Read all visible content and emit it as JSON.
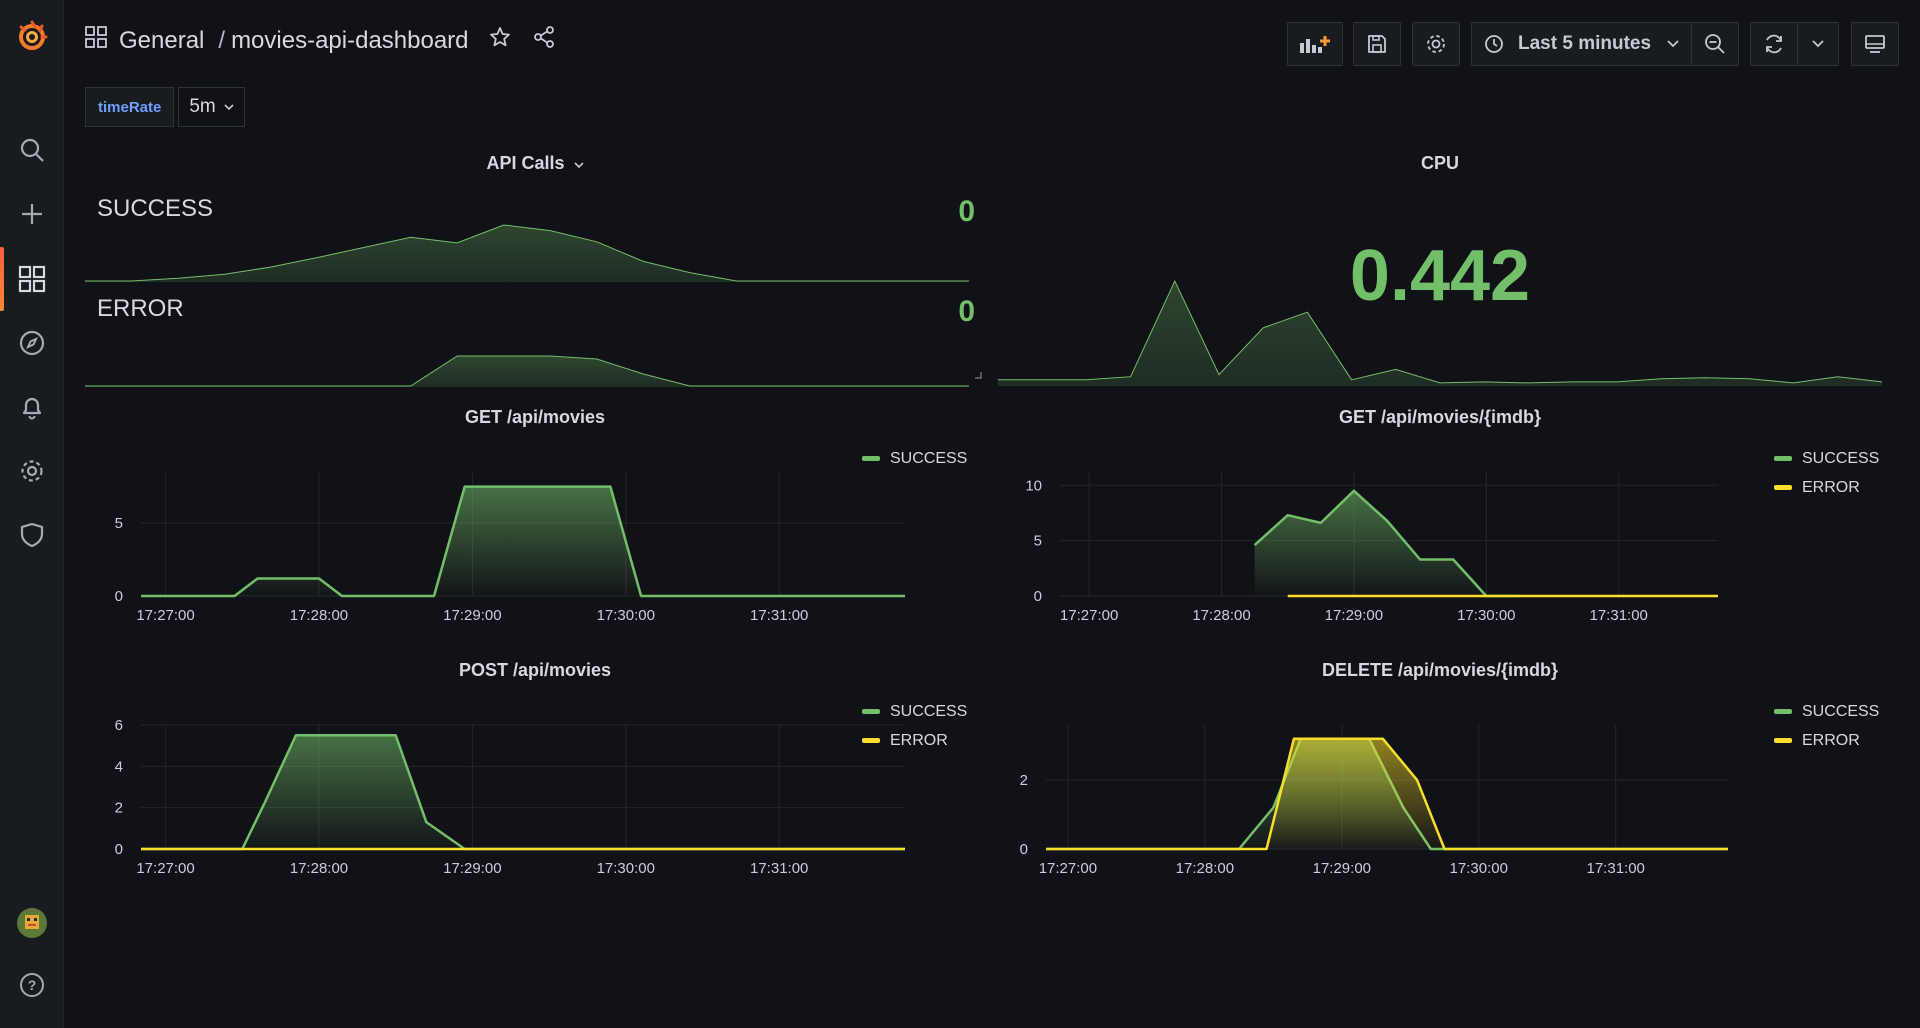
{
  "header": {
    "folder": "General",
    "separator": "/",
    "dashboard_title": "movies-api-dashboard",
    "time_range": "Last 5 minutes"
  },
  "variables": {
    "name": "timeRate",
    "value": "5m"
  },
  "colors": {
    "success": "#73bf69",
    "error": "#fade2a",
    "background": "#111217",
    "accent": "#f55f3e"
  },
  "panels": {
    "api_calls": {
      "title": "API Calls",
      "success_label": "SUCCESS",
      "success_value": "0",
      "error_label": "ERROR",
      "error_value": "0"
    },
    "cpu": {
      "title": "CPU",
      "value": "0.442"
    },
    "get_movies": {
      "title": "GET /api/movies",
      "legend": [
        "SUCCESS"
      ]
    },
    "get_movie_imdb": {
      "title": "GET /api/movies/{imdb}",
      "legend": [
        "SUCCESS",
        "ERROR"
      ]
    },
    "post_movies": {
      "title": "POST /api/movies",
      "legend": [
        "SUCCESS",
        "ERROR"
      ]
    },
    "delete_movie": {
      "title": "DELETE /api/movies/{imdb}",
      "legend": [
        "SUCCESS",
        "ERROR"
      ]
    }
  },
  "chart_data": [
    {
      "id": "get_movies",
      "type": "area",
      "title": "GET /api/movies",
      "x_ticks": [
        "17:27:00",
        "17:28:00",
        "17:29:00",
        "17:30:00",
        "17:31:00"
      ],
      "y_ticks": [
        0,
        5
      ],
      "ylim": [
        0,
        8.5
      ],
      "xlim": [
        -0.16,
        4.82
      ],
      "series": [
        {
          "name": "SUCCESS",
          "color": "#73bf69",
          "x": [
            -0.16,
            0.45,
            0.6,
            1.0,
            1.15,
            1.3,
            1.75,
            1.95,
            2.9,
            3.1,
            4.82
          ],
          "y": [
            0,
            0,
            1.2,
            1.2,
            0,
            0,
            0,
            7.5,
            7.5,
            0,
            0
          ]
        }
      ]
    },
    {
      "id": "get_movie_imdb",
      "type": "area",
      "title": "GET /api/movies/{imdb}",
      "x_ticks": [
        "17:27:00",
        "17:28:00",
        "17:29:00",
        "17:30:00",
        "17:31:00"
      ],
      "y_ticks": [
        0,
        5,
        10
      ],
      "ylim": [
        0,
        11.2
      ],
      "xlim": [
        -0.22,
        4.75
      ],
      "series": [
        {
          "name": "SUCCESS",
          "color": "#73bf69",
          "x": [
            1.25,
            1.5,
            1.75,
            2.0,
            2.25,
            2.5,
            2.75,
            3.0,
            3.25
          ],
          "y": [
            4.6,
            7.3,
            6.6,
            9.5,
            6.8,
            3.3,
            3.3,
            0,
            0
          ]
        },
        {
          "name": "ERROR",
          "color": "#fade2a",
          "x": [
            1.5,
            4.75
          ],
          "y": [
            0,
            0
          ]
        }
      ]
    },
    {
      "id": "post_movies",
      "type": "area",
      "title": "POST /api/movies",
      "x_ticks": [
        "17:27:00",
        "17:28:00",
        "17:29:00",
        "17:30:00",
        "17:31:00"
      ],
      "y_ticks": [
        0,
        2,
        4,
        6
      ],
      "ylim": [
        0,
        6.0
      ],
      "xlim": [
        -0.16,
        4.82
      ],
      "series": [
        {
          "name": "SUCCESS",
          "color": "#73bf69",
          "x": [
            -0.16,
            0.5,
            0.65,
            0.85,
            1.5,
            1.7,
            1.95,
            2.15,
            4.82
          ],
          "y": [
            0,
            0,
            2.3,
            5.5,
            5.5,
            1.3,
            0,
            0,
            0
          ]
        },
        {
          "name": "ERROR",
          "color": "#fade2a",
          "x": [
            -0.16,
            4.82
          ],
          "y": [
            0,
            0
          ]
        }
      ]
    },
    {
      "id": "delete_movie",
      "type": "area",
      "title": "DELETE /api/movies/{imdb}",
      "x_ticks": [
        "17:27:00",
        "17:28:00",
        "17:29:00",
        "17:30:00",
        "17:31:00"
      ],
      "y_ticks": [
        0,
        2
      ],
      "ylim": [
        0,
        3.6
      ],
      "xlim": [
        -0.16,
        4.82
      ],
      "series": [
        {
          "name": "SUCCESS",
          "color": "#73bf69",
          "x": [
            -0.16,
            1.25,
            1.5,
            1.7,
            2.2,
            2.45,
            2.65,
            4.82
          ],
          "y": [
            0,
            0,
            1.2,
            3.2,
            3.2,
            1.2,
            0,
            0
          ]
        },
        {
          "name": "ERROR",
          "color": "#fade2a",
          "x": [
            -0.16,
            1.45,
            1.65,
            2.3,
            2.55,
            2.75,
            4.82
          ],
          "y": [
            0,
            0,
            3.2,
            3.2,
            2.0,
            0,
            0
          ]
        }
      ]
    },
    {
      "id": "api_success_spark",
      "type": "area",
      "title": "SUCCESS",
      "series": [
        {
          "name": "SUCCESS",
          "y": [
            0,
            0,
            0.05,
            0.12,
            0.25,
            0.42,
            0.6,
            0.78,
            0.68,
            1.0,
            0.9,
            0.7,
            0.35,
            0.15,
            0,
            0,
            0,
            0,
            0,
            0
          ]
        }
      ]
    },
    {
      "id": "api_error_spark",
      "type": "area",
      "title": "ERROR",
      "series": [
        {
          "name": "ERROR",
          "y": [
            0,
            0,
            0,
            0,
            0,
            0,
            0,
            0,
            1.0,
            1.0,
            1.0,
            0.9,
            0.4,
            0,
            0,
            0,
            0,
            0,
            0,
            0
          ]
        }
      ]
    },
    {
      "id": "cpu_spark",
      "type": "area",
      "title": "CPU",
      "series": [
        {
          "name": "CPU",
          "y": [
            0.05,
            0.05,
            0.05,
            0.08,
            1.0,
            0.1,
            0.55,
            0.7,
            0.05,
            0.15,
            0.02,
            0.03,
            0.02,
            0.03,
            0.03,
            0.06,
            0.07,
            0.06,
            0.02,
            0.08,
            0.03
          ]
        }
      ]
    }
  ]
}
